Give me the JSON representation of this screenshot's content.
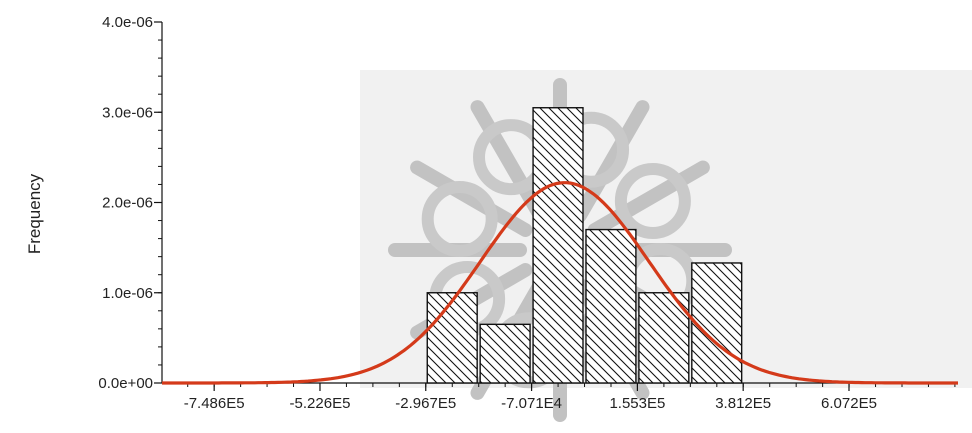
{
  "chart_data": {
    "type": "bar",
    "subtype": "histogram-with-normal-fit",
    "title": "",
    "xlabel": "",
    "ylabel": "Frequency",
    "xlim": [
      -860000,
      840000
    ],
    "ylim": [
      0,
      4e-06
    ],
    "x_ticks": [
      {
        "value": -748600,
        "label": "-7.486E5"
      },
      {
        "value": -522600,
        "label": "-5.226E5"
      },
      {
        "value": -296700,
        "label": "-2.967E5"
      },
      {
        "value": -70710,
        "label": "-7.071E4"
      },
      {
        "value": 155300,
        "label": "1.553E5"
      },
      {
        "value": 381200,
        "label": "3.812E5"
      },
      {
        "value": 607200,
        "label": "6.072E5"
      }
    ],
    "y_ticks": [
      {
        "value": 0,
        "label": "0.0e+00"
      },
      {
        "value": 1e-06,
        "label": "1.0e-06"
      },
      {
        "value": 2e-06,
        "label": "2.0e-06"
      },
      {
        "value": 3e-06,
        "label": "3.0e-06"
      },
      {
        "value": 4e-06,
        "label": "4.0e-06"
      }
    ],
    "bins": [
      {
        "x0": -296700,
        "x1": -183700,
        "value": 1e-06
      },
      {
        "x0": -183700,
        "x1": -70710,
        "value": 6.5e-07
      },
      {
        "x0": -70710,
        "x1": 42300,
        "value": 3.05e-06
      },
      {
        "x0": 42300,
        "x1": 155300,
        "value": 1.7e-06
      },
      {
        "x0": 155300,
        "x1": 268300,
        "value": 1e-06
      },
      {
        "x0": 268300,
        "x1": 381200,
        "value": 1.33e-06
      }
    ],
    "normal_fit": {
      "mean": 0,
      "std": 180000,
      "peak": 2.22e-06,
      "color": "#d43a1a"
    },
    "bar_fill_pattern": "diagonal-hatch",
    "bar_stroke": "#111111",
    "grid": false,
    "legend": "none",
    "watermark": "decorative grey snowflake-like emblem behind plot"
  }
}
